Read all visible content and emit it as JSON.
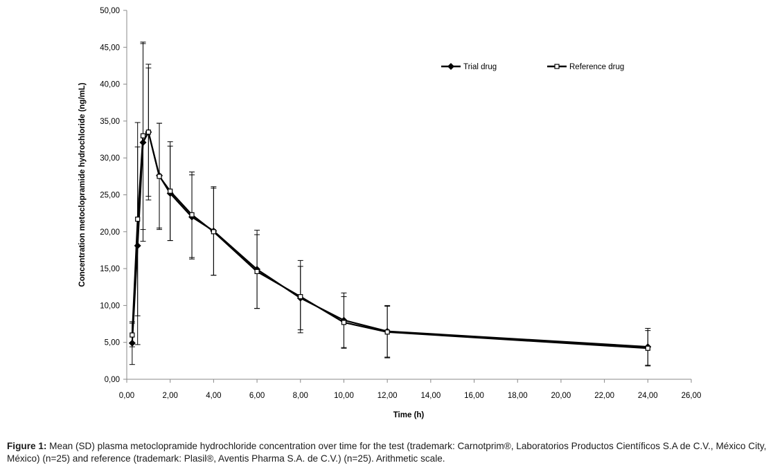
{
  "chart_data": {
    "type": "line",
    "title": "",
    "xlabel": "Time (h)",
    "ylabel": "Concentration metoclopramide hydrochloride (ng/mL)",
    "xlim": [
      0,
      26
    ],
    "ylim": [
      0,
      50
    ],
    "x_ticks": [
      "0,00",
      "2,00",
      "4,00",
      "6,00",
      "8,00",
      "10,00",
      "12,00",
      "14,00",
      "16,00",
      "18,00",
      "20,00",
      "22,00",
      "24,00",
      "26,00"
    ],
    "y_ticks": [
      "0,00",
      "5,00",
      "10,00",
      "15,00",
      "20,00",
      "25,00",
      "30,00",
      "35,00",
      "40,00",
      "45,00",
      "50,00"
    ],
    "grid": false,
    "legend_position": "top-right",
    "series": [
      {
        "name": "Trial drug",
        "marker": "diamond-filled",
        "color": "#000000",
        "x": [
          0.25,
          0.5,
          0.75,
          1,
          1.5,
          2,
          3,
          4,
          6,
          8,
          10,
          12,
          24
        ],
        "y": [
          4.9,
          18.1,
          32.1,
          33.5,
          27.6,
          25.2,
          22.0,
          20.1,
          14.9,
          11.0,
          8.0,
          6.5,
          4.4
        ],
        "sd": [
          2.9,
          13.4,
          13.4,
          9.2,
          7.1,
          6.4,
          5.7,
          6.0,
          5.3,
          4.3,
          3.7,
          3.5,
          2.5
        ]
      },
      {
        "name": "Reference drug",
        "marker": "square-open",
        "color": "#000000",
        "x": [
          0.25,
          0.5,
          0.75,
          1,
          1.5,
          2,
          3,
          4,
          6,
          8,
          10,
          12,
          24
        ],
        "y": [
          6.0,
          21.7,
          33.0,
          33.5,
          27.5,
          25.5,
          22.3,
          20.0,
          14.6,
          11.2,
          7.7,
          6.4,
          4.2
        ],
        "sd": [
          1.6,
          13.1,
          12.7,
          8.7,
          7.2,
          6.7,
          5.8,
          5.9,
          5.0,
          4.9,
          3.5,
          3.5,
          2.4
        ]
      }
    ]
  },
  "caption": {
    "label": "Figure 1:",
    "text": " Mean (SD) plasma metoclopramide hydrochloride concentration over time for the test (trademark: Carnotprim®, Laboratorios Productos Científicos S.A de C.V., México City, México) (n=25) and reference (trademark: Plasil®, Aventis Pharma S.A. de C.V.) (n=25). Arithmetic scale."
  }
}
